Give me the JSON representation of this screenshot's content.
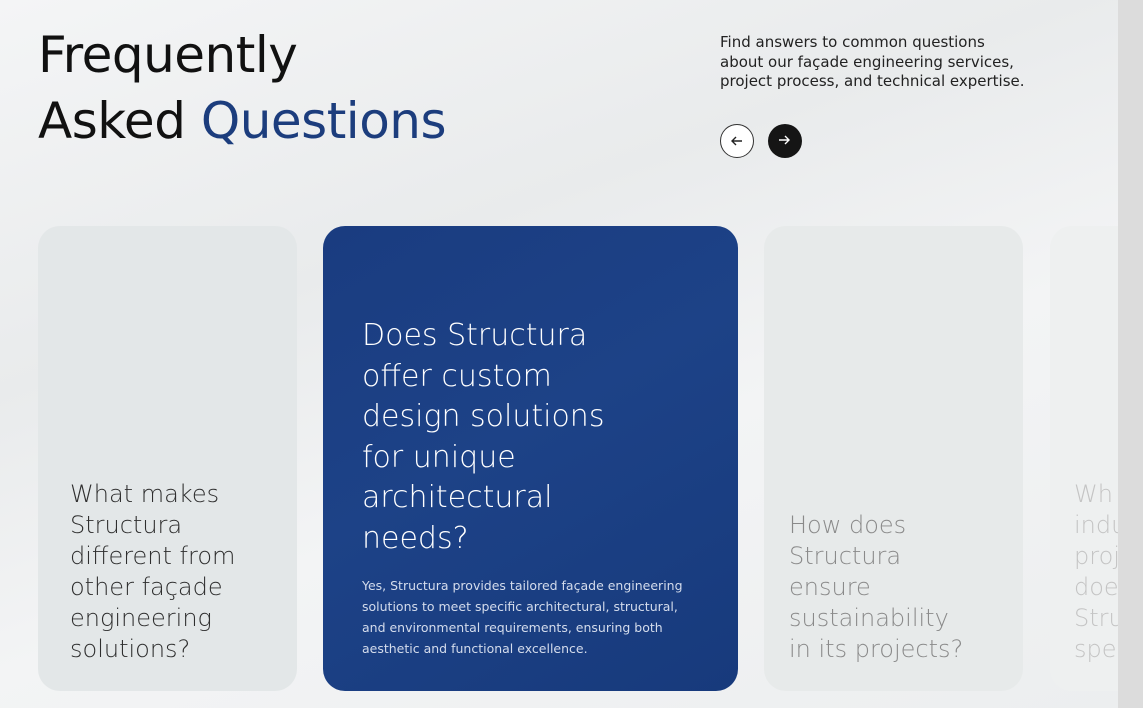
{
  "header": {
    "title_line1": "Frequently",
    "title_line2_plain": "Asked",
    "title_line2_accent": "Questions",
    "description": "Find answers to common questions about our façade engineering services, project process, and technical expertise."
  },
  "cards": [
    {
      "question": "What makes Structura different from other façade engineering solutions?"
    },
    {
      "question": "Does Structura offer custom design solutions for unique architectural needs?",
      "answer": "Yes, Structura provides tailored façade engineering solutions to meet specific architectural, structural, and environmental requirements, ensuring both aesthetic and functional excellence."
    },
    {
      "question": "How does Structura ensure sustainability in its projects?"
    },
    {
      "question": "Wh indu proj doe Stru spe"
    }
  ]
}
